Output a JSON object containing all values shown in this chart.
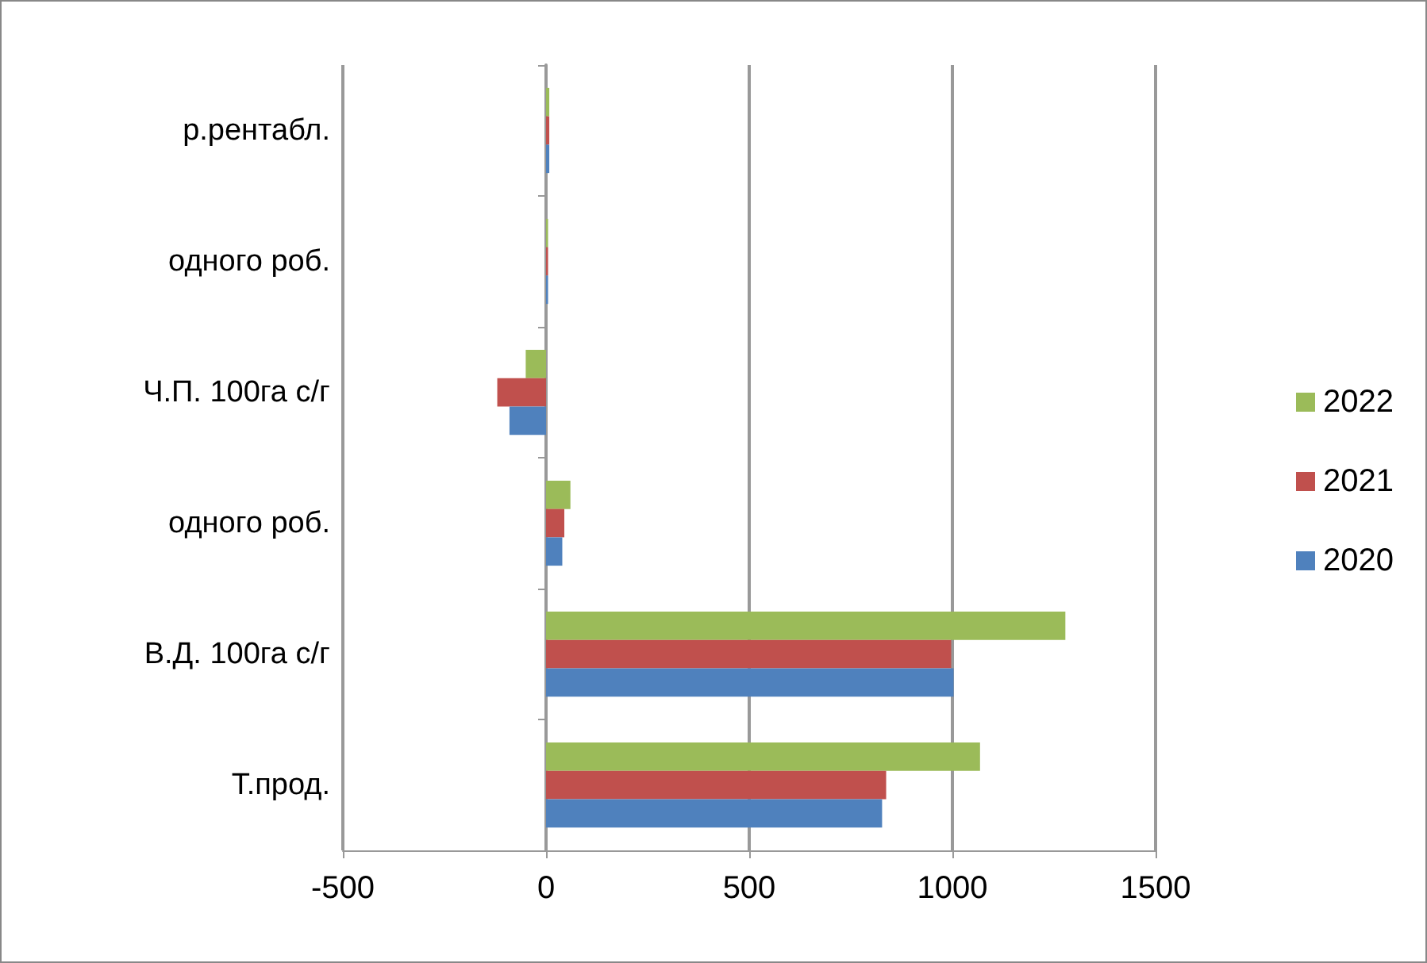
{
  "chart_data": {
    "type": "bar",
    "orientation": "horizontal",
    "categories": [
      "р.рентабл.",
      "одного роб.",
      "Ч.П. 100га с/г",
      "одного роб.",
      "В.Д. 100га с/г",
      "Т.прод."
    ],
    "series": [
      {
        "name": "2022",
        "color": "#9bbb59",
        "values": [
          8,
          5,
          -50,
          60,
          1278,
          1068
        ]
      },
      {
        "name": "2021",
        "color": "#c0504d",
        "values": [
          8,
          5,
          -120,
          45,
          997,
          837
        ]
      },
      {
        "name": "2020",
        "color": "#4f81bd",
        "values": [
          8,
          5,
          -90,
          40,
          1003,
          827
        ]
      }
    ],
    "xlim": [
      -500,
      1500
    ],
    "xticks": [
      -500,
      0,
      500,
      1000,
      1500
    ],
    "grid": "x",
    "legend": "right"
  }
}
